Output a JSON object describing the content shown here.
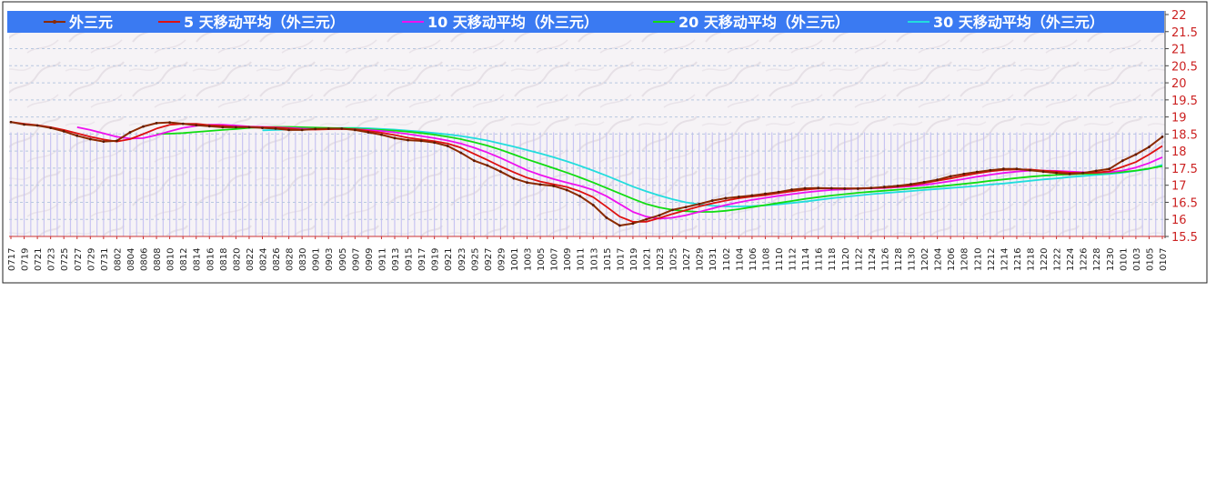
{
  "chart_data": {
    "type": "line",
    "legend_position": "top",
    "grid": true,
    "ylim": [
      15.5,
      22
    ],
    "y_ticks": [
      "15.5",
      "16",
      "16.5",
      "17",
      "17.5",
      "18",
      "18.5",
      "19",
      "19.5",
      "20",
      "20.5",
      "21",
      "21.5",
      "22"
    ],
    "x": [
      "0717",
      "0719",
      "0721",
      "0723",
      "0725",
      "0727",
      "0729",
      "0731",
      "0802",
      "0804",
      "0806",
      "0808",
      "0810",
      "0812",
      "0814",
      "0816",
      "0818",
      "0820",
      "0822",
      "0824",
      "0826",
      "0828",
      "0830",
      "0901",
      "0903",
      "0905",
      "0907",
      "0909",
      "0911",
      "0913",
      "0915",
      "0917",
      "0919",
      "0921",
      "0923",
      "0925",
      "0927",
      "0929",
      "1001",
      "1003",
      "1005",
      "1007",
      "1009",
      "1011",
      "1013",
      "1015",
      "1017",
      "1019",
      "1021",
      "1023",
      "1025",
      "1027",
      "1029",
      "1031",
      "1102",
      "1104",
      "1106",
      "1108",
      "1110",
      "1112",
      "1114",
      "1116",
      "1118",
      "1120",
      "1122",
      "1124",
      "1126",
      "1128",
      "1130",
      "1202",
      "1204",
      "1206",
      "1208",
      "1210",
      "1212",
      "1214",
      "1216",
      "1218",
      "1220",
      "1222",
      "1224",
      "1226",
      "1228",
      "1230",
      "0101",
      "0103",
      "0105",
      "0107"
    ],
    "series": [
      {
        "name": "外三元",
        "color": "#8b2a00",
        "values": [
          18.85,
          18.78,
          18.75,
          18.68,
          18.58,
          18.45,
          18.35,
          18.28,
          18.3,
          18.55,
          18.72,
          18.82,
          18.84,
          18.8,
          18.76,
          18.73,
          18.7,
          18.7,
          18.7,
          18.68,
          18.66,
          18.62,
          18.62,
          18.65,
          18.66,
          18.66,
          18.62,
          18.55,
          18.48,
          18.38,
          18.32,
          18.3,
          18.25,
          18.15,
          17.95,
          17.72,
          17.58,
          17.4,
          17.2,
          17.08,
          17.02,
          16.98,
          16.86,
          16.68,
          16.42,
          16.05,
          15.82,
          15.88,
          16.0,
          16.12,
          16.28,
          16.36,
          16.45,
          16.55,
          16.62,
          16.66,
          16.7,
          16.75,
          16.8,
          16.87,
          16.91,
          16.92,
          16.91,
          16.9,
          16.9,
          16.92,
          16.95,
          16.98,
          17.03,
          17.09,
          17.16,
          17.26,
          17.33,
          17.39,
          17.44,
          17.48,
          17.48,
          17.44,
          17.4,
          17.36,
          17.33,
          17.36,
          17.42,
          17.48,
          17.72,
          17.9,
          18.12,
          18.42
        ]
      },
      {
        "name": "5 天移动平均（外三元）",
        "color": "#dd1111",
        "values": [
          18.85,
          18.8,
          18.76,
          18.7,
          18.62,
          18.52,
          18.42,
          18.34,
          18.28,
          18.35,
          18.5,
          18.66,
          18.77,
          18.8,
          18.8,
          18.76,
          18.74,
          18.71,
          18.71,
          18.7,
          18.69,
          18.66,
          18.63,
          18.63,
          18.64,
          18.65,
          18.64,
          18.59,
          18.54,
          18.47,
          18.39,
          18.34,
          18.29,
          18.22,
          18.1,
          17.92,
          17.74,
          17.55,
          17.38,
          17.22,
          17.11,
          17.03,
          16.95,
          16.82,
          16.65,
          16.37,
          16.08,
          15.93,
          15.93,
          16.04,
          16.16,
          16.27,
          16.38,
          16.47,
          16.55,
          16.62,
          16.67,
          16.71,
          16.77,
          16.82,
          16.87,
          16.9,
          16.91,
          16.91,
          16.91,
          16.92,
          16.93,
          16.96,
          17.0,
          17.06,
          17.13,
          17.2,
          17.28,
          17.35,
          17.41,
          17.45,
          17.46,
          17.46,
          17.43,
          17.4,
          17.37,
          17.36,
          17.37,
          17.41,
          17.54,
          17.68,
          17.9,
          18.15
        ]
      },
      {
        "name": "10 天移动平均（外三元）",
        "color": "#ee11ee",
        "values": [
          null,
          null,
          null,
          null,
          null,
          18.7,
          18.62,
          18.52,
          18.42,
          18.37,
          18.38,
          18.47,
          18.58,
          18.68,
          18.74,
          18.77,
          18.77,
          18.75,
          18.72,
          18.71,
          18.7,
          18.68,
          18.66,
          18.65,
          18.65,
          18.65,
          18.64,
          18.62,
          18.59,
          18.55,
          18.5,
          18.44,
          18.38,
          18.31,
          18.22,
          18.1,
          17.96,
          17.8,
          17.62,
          17.44,
          17.3,
          17.18,
          17.08,
          16.98,
          16.86,
          16.68,
          16.45,
          16.22,
          16.08,
          16.02,
          16.05,
          16.12,
          16.22,
          16.32,
          16.42,
          16.5,
          16.57,
          16.63,
          16.69,
          16.74,
          16.79,
          16.83,
          16.86,
          16.88,
          16.9,
          16.91,
          16.92,
          16.94,
          16.97,
          17.01,
          17.06,
          17.12,
          17.18,
          17.25,
          17.31,
          17.36,
          17.4,
          17.43,
          17.43,
          17.42,
          17.4,
          17.38,
          17.37,
          17.38,
          17.43,
          17.52,
          17.65,
          17.82
        ]
      },
      {
        "name": "20 天移动平均（外三元）",
        "color": "#11dd11",
        "values": [
          null,
          null,
          null,
          null,
          null,
          null,
          null,
          null,
          null,
          null,
          null,
          18.5,
          18.51,
          18.53,
          18.56,
          18.59,
          18.62,
          18.65,
          18.68,
          18.7,
          18.71,
          18.71,
          18.7,
          18.69,
          18.68,
          18.67,
          18.66,
          18.64,
          18.62,
          18.6,
          18.57,
          18.53,
          18.48,
          18.42,
          18.35,
          18.26,
          18.16,
          18.04,
          17.9,
          17.76,
          17.63,
          17.5,
          17.37,
          17.23,
          17.08,
          16.92,
          16.76,
          16.6,
          16.45,
          16.35,
          16.28,
          16.24,
          16.22,
          16.22,
          16.25,
          16.3,
          16.36,
          16.42,
          16.48,
          16.54,
          16.6,
          16.65,
          16.7,
          16.74,
          16.78,
          16.81,
          16.84,
          16.87,
          16.9,
          16.93,
          16.96,
          17.0,
          17.04,
          17.08,
          17.13,
          17.17,
          17.21,
          17.25,
          17.28,
          17.3,
          17.32,
          17.33,
          17.34,
          17.36,
          17.39,
          17.43,
          17.49,
          17.56
        ]
      },
      {
        "name": "30 天移动平均（外三元）",
        "color": "#22dddd",
        "values": [
          null,
          null,
          null,
          null,
          null,
          null,
          null,
          null,
          null,
          null,
          null,
          null,
          null,
          null,
          null,
          null,
          null,
          null,
          null,
          18.61,
          18.62,
          18.63,
          18.65,
          18.66,
          18.67,
          18.68,
          18.68,
          18.67,
          18.65,
          18.63,
          18.6,
          18.57,
          18.53,
          18.49,
          18.44,
          18.38,
          18.31,
          18.22,
          18.13,
          18.03,
          17.93,
          17.82,
          17.7,
          17.57,
          17.43,
          17.28,
          17.12,
          16.96,
          16.82,
          16.7,
          16.59,
          16.5,
          16.44,
          16.4,
          16.38,
          16.38,
          16.39,
          16.41,
          16.44,
          16.48,
          16.52,
          16.57,
          16.62,
          16.66,
          16.7,
          16.74,
          16.77,
          16.8,
          16.83,
          16.86,
          16.89,
          16.92,
          16.95,
          16.98,
          17.02,
          17.05,
          17.09,
          17.13,
          17.17,
          17.2,
          17.24,
          17.27,
          17.3,
          17.33,
          17.37,
          17.42,
          17.48,
          17.6
        ]
      }
    ]
  }
}
